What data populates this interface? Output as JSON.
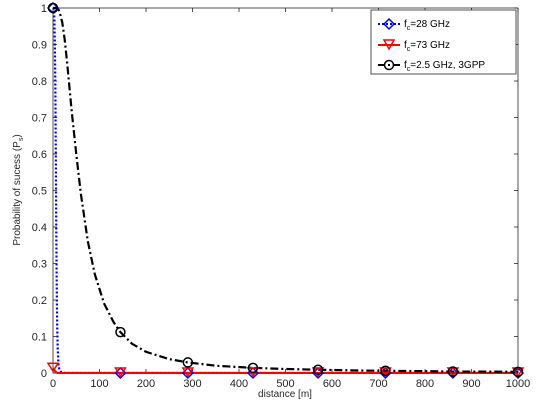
{
  "chart_data": {
    "type": "line",
    "xlabel": "distance [m]",
    "ylabel": "Probability of sucess (P",
    "ylabel_sub": "s",
    "ylabel_tail": ")",
    "xlim": [
      0,
      1000
    ],
    "ylim": [
      0,
      1
    ],
    "xticks": [
      0,
      100,
      200,
      300,
      400,
      500,
      600,
      700,
      800,
      900,
      1000
    ],
    "yticks": [
      0,
      0.1,
      0.2,
      0.3,
      0.4,
      0.5,
      0.6,
      0.7,
      0.8,
      0.9,
      1
    ],
    "grid": false,
    "legend_position": "top-right",
    "series": [
      {
        "legend_prefix": "f",
        "legend_sub": "c",
        "legend_suffix": "=28 GHz",
        "color": "#0000ff",
        "dash": "dotted",
        "marker": "diamond",
        "x": [
          0,
          1,
          2,
          3,
          4,
          5,
          6,
          7,
          8,
          9,
          10,
          12,
          14,
          17,
          25,
          50,
          100,
          145,
          300,
          430,
          570,
          715,
          860,
          1000
        ],
        "y": [
          1,
          1,
          0.99,
          0.97,
          0.9,
          0.78,
          0.6,
          0.4,
          0.24,
          0.13,
          0.07,
          0.02,
          0.008,
          0.003,
          0,
          0,
          0,
          0,
          0,
          0,
          0,
          0,
          0,
          0
        ],
        "marker_x": [
          0,
          145,
          290,
          430,
          570,
          715,
          860,
          1000
        ],
        "marker_y": [
          1,
          0,
          0,
          0,
          0,
          0,
          0,
          0
        ]
      },
      {
        "legend_prefix": "f",
        "legend_sub": "c",
        "legend_suffix": "=73 GHz",
        "color": "#ff0000",
        "dash": "solid",
        "marker": "triangle-down",
        "x": [
          0,
          2,
          4,
          6,
          8,
          10,
          20,
          1000
        ],
        "y": [
          0.013,
          0.01,
          0.006,
          0.003,
          0.001,
          0,
          0,
          0
        ],
        "marker_x": [
          0,
          145,
          290,
          430,
          570,
          715,
          860,
          1000
        ],
        "marker_y": [
          0.013,
          0,
          0,
          0,
          0,
          0,
          0,
          0
        ]
      },
      {
        "legend_prefix": "f",
        "legend_sub": "c",
        "legend_suffix": "=2.5 GHz, 3GPP",
        "color": "#000000",
        "dash": "dashdot",
        "marker": "circle",
        "x": [
          0,
          3,
          6,
          9,
          12,
          15,
          20,
          25,
          30,
          40,
          50,
          60,
          75,
          90,
          110,
          130,
          145,
          170,
          200,
          250,
          290,
          350,
          430,
          500,
          570,
          650,
          715,
          800,
          860,
          930,
          1000
        ],
        "y": [
          1,
          1,
          1,
          1,
          0.995,
          0.985,
          0.96,
          0.915,
          0.855,
          0.72,
          0.6,
          0.49,
          0.36,
          0.27,
          0.19,
          0.14,
          0.112,
          0.08,
          0.058,
          0.038,
          0.029,
          0.02,
          0.014,
          0.011,
          0.009,
          0.007,
          0.006,
          0.005,
          0.004,
          0.004,
          0.003
        ],
        "marker_x": [
          0,
          145,
          290,
          430,
          570,
          715,
          860,
          1000
        ],
        "marker_y": [
          1,
          0.112,
          0.029,
          0.014,
          0.009,
          0.006,
          0.004,
          0.003
        ]
      }
    ]
  }
}
